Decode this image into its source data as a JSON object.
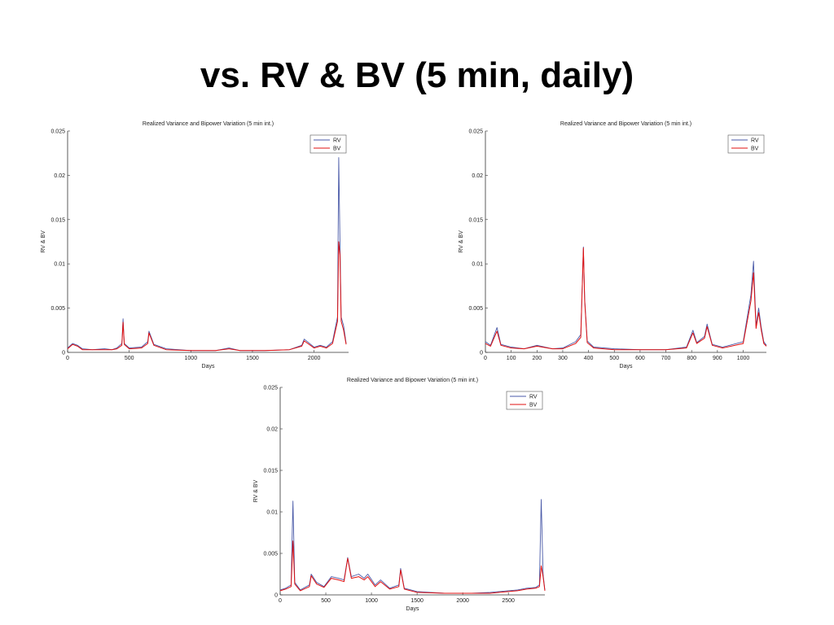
{
  "slide": {
    "title": "vs. RV & BV (5 min, daily)"
  },
  "colors": {
    "rv": "#4a5aa8",
    "bv": "#e01010",
    "axis": "#333333"
  },
  "chart_data": [
    {
      "type": "line",
      "title": "Realized Variance and Bipower Variation (5 min int.)",
      "xlabel": "Days",
      "ylabel": "RV & BV",
      "xlim": [
        0,
        2280
      ],
      "ylim": [
        0,
        0.025
      ],
      "xticks": [
        0,
        500,
        1000,
        1500,
        2000
      ],
      "yticks": [
        0,
        0.005,
        0.01,
        0.015,
        0.02,
        0.025
      ],
      "ytick_labels": [
        "0",
        "0.005",
        "0.01",
        "0.015",
        "0.02",
        "0.025"
      ],
      "legend": [
        "RV",
        "BV"
      ],
      "legend_position": "top-right",
      "series": [
        {
          "name": "RV",
          "x": [
            0,
            40,
            80,
            120,
            200,
            300,
            360,
            400,
            440,
            450,
            460,
            500,
            600,
            650,
            660,
            700,
            800,
            1000,
            1200,
            1310,
            1400,
            1600,
            1800,
            1900,
            1920,
            2000,
            2050,
            2100,
            2150,
            2190,
            2200,
            2210,
            2220,
            2240,
            2260
          ],
          "y": [
            0.0005,
            0.001,
            0.0008,
            0.0004,
            0.0003,
            0.0004,
            0.0003,
            0.0005,
            0.001,
            0.0038,
            0.001,
            0.0005,
            0.0006,
            0.0012,
            0.0024,
            0.0009,
            0.0004,
            0.0002,
            0.0002,
            0.0005,
            0.0002,
            0.0002,
            0.0003,
            0.0008,
            0.0015,
            0.0006,
            0.0008,
            0.0006,
            0.0012,
            0.004,
            0.022,
            0.0125,
            0.004,
            0.003,
            0.001
          ]
        },
        {
          "name": "BV",
          "x": [
            0,
            40,
            80,
            120,
            200,
            300,
            360,
            400,
            440,
            450,
            460,
            500,
            600,
            650,
            660,
            700,
            800,
            1000,
            1200,
            1310,
            1400,
            1600,
            1800,
            1900,
            1920,
            2000,
            2050,
            2100,
            2150,
            2190,
            2200,
            2210,
            2220,
            2240,
            2260
          ],
          "y": [
            0.0004,
            0.0009,
            0.0007,
            0.0003,
            0.0003,
            0.0003,
            0.0003,
            0.0004,
            0.0008,
            0.0034,
            0.0009,
            0.0004,
            0.0005,
            0.001,
            0.0022,
            0.0008,
            0.0003,
            0.0002,
            0.0002,
            0.0004,
            0.0002,
            0.0002,
            0.0003,
            0.0007,
            0.0013,
            0.0005,
            0.0007,
            0.0005,
            0.001,
            0.0035,
            0.0125,
            0.011,
            0.0035,
            0.0025,
            0.0009
          ]
        }
      ]
    },
    {
      "type": "line",
      "title": "Realized Variance and Bipower Variation (5 min int.)",
      "xlabel": "Days",
      "ylabel": "RV & BV",
      "xlim": [
        0,
        1090
      ],
      "ylim": [
        0,
        0.025
      ],
      "xticks": [
        0,
        100,
        200,
        300,
        400,
        500,
        600,
        700,
        800,
        900,
        1000
      ],
      "yticks": [
        0,
        0.005,
        0.01,
        0.015,
        0.02,
        0.025
      ],
      "ytick_labels": [
        "0",
        "0.005",
        "0.01",
        "0.015",
        "0.02",
        "0.025"
      ],
      "legend": [
        "RV",
        "BV"
      ],
      "legend_position": "top-right",
      "series": [
        {
          "name": "RV",
          "x": [
            0,
            20,
            45,
            60,
            100,
            150,
            200,
            260,
            300,
            350,
            370,
            380,
            385,
            395,
            420,
            500,
            600,
            700,
            780,
            805,
            820,
            850,
            860,
            880,
            920,
            1000,
            1030,
            1040,
            1050,
            1060,
            1070,
            1080,
            1090
          ],
          "y": [
            0.0012,
            0.0008,
            0.0028,
            0.0009,
            0.0006,
            0.0004,
            0.0008,
            0.0004,
            0.0005,
            0.0012,
            0.002,
            0.0119,
            0.006,
            0.0013,
            0.0006,
            0.0004,
            0.0003,
            0.0003,
            0.0006,
            0.0025,
            0.0011,
            0.0018,
            0.0032,
            0.0009,
            0.0006,
            0.0012,
            0.0065,
            0.0103,
            0.003,
            0.005,
            0.0028,
            0.0012,
            0.0008
          ]
        },
        {
          "name": "BV",
          "x": [
            0,
            20,
            45,
            60,
            100,
            150,
            200,
            260,
            300,
            350,
            370,
            380,
            385,
            395,
            420,
            500,
            600,
            700,
            780,
            805,
            820,
            850,
            860,
            880,
            920,
            1000,
            1030,
            1040,
            1050,
            1060,
            1070,
            1080,
            1090
          ],
          "y": [
            0.001,
            0.0007,
            0.0024,
            0.0008,
            0.0005,
            0.0004,
            0.0007,
            0.0004,
            0.0004,
            0.001,
            0.0017,
            0.0118,
            0.0058,
            0.0011,
            0.0005,
            0.0003,
            0.0003,
            0.0003,
            0.0005,
            0.0022,
            0.001,
            0.0016,
            0.0029,
            0.0008,
            0.0005,
            0.001,
            0.0058,
            0.009,
            0.0027,
            0.0045,
            0.0025,
            0.001,
            0.0007
          ]
        }
      ]
    },
    {
      "type": "line",
      "title": "Realized Variance and Bipower Variation (5 min int.)",
      "xlabel": "Days",
      "ylabel": "RV & BV",
      "xlim": [
        0,
        2900
      ],
      "ylim": [
        0,
        0.025
      ],
      "xticks": [
        0,
        500,
        1000,
        1500,
        2000,
        2500
      ],
      "yticks": [
        0,
        0.005,
        0.01,
        0.015,
        0.02,
        0.025
      ],
      "ytick_labels": [
        "0",
        "0.005",
        "0.01",
        "0.015",
        "0.02",
        "0.025"
      ],
      "legend": [
        "RV",
        "BV"
      ],
      "legend_position": "top-right",
      "series": [
        {
          "name": "RV",
          "x": [
            0,
            60,
            120,
            140,
            160,
            220,
            320,
            340,
            400,
            480,
            560,
            640,
            700,
            740,
            780,
            860,
            920,
            960,
            1040,
            1100,
            1200,
            1300,
            1320,
            1360,
            1500,
            1800,
            2100,
            2300,
            2400,
            2600,
            2700,
            2800,
            2840,
            2860,
            2880,
            2900
          ],
          "y": [
            0.0006,
            0.0008,
            0.0012,
            0.0113,
            0.0015,
            0.0006,
            0.0012,
            0.0025,
            0.0015,
            0.001,
            0.0022,
            0.002,
            0.0018,
            0.0045,
            0.0022,
            0.0025,
            0.002,
            0.0025,
            0.0012,
            0.0018,
            0.0008,
            0.0012,
            0.0032,
            0.0008,
            0.0004,
            0.0002,
            0.0002,
            0.0003,
            0.0004,
            0.0006,
            0.0008,
            0.0009,
            0.0012,
            0.0115,
            0.0025,
            0.0006
          ]
        },
        {
          "name": "BV",
          "x": [
            0,
            60,
            120,
            140,
            160,
            220,
            320,
            340,
            400,
            480,
            560,
            640,
            700,
            740,
            780,
            860,
            920,
            960,
            1040,
            1100,
            1200,
            1300,
            1320,
            1360,
            1500,
            1800,
            2100,
            2300,
            2400,
            2600,
            2700,
            2800,
            2840,
            2860,
            2880,
            2900
          ],
          "y": [
            0.0005,
            0.0007,
            0.001,
            0.0065,
            0.0013,
            0.0005,
            0.001,
            0.0023,
            0.0013,
            0.0009,
            0.002,
            0.0018,
            0.0016,
            0.0044,
            0.002,
            0.0022,
            0.0018,
            0.0022,
            0.001,
            0.0016,
            0.0007,
            0.001,
            0.003,
            0.0007,
            0.0003,
            0.0002,
            0.0002,
            0.0002,
            0.0003,
            0.0005,
            0.0007,
            0.0008,
            0.001,
            0.0035,
            0.0022,
            0.0005
          ]
        }
      ]
    }
  ]
}
